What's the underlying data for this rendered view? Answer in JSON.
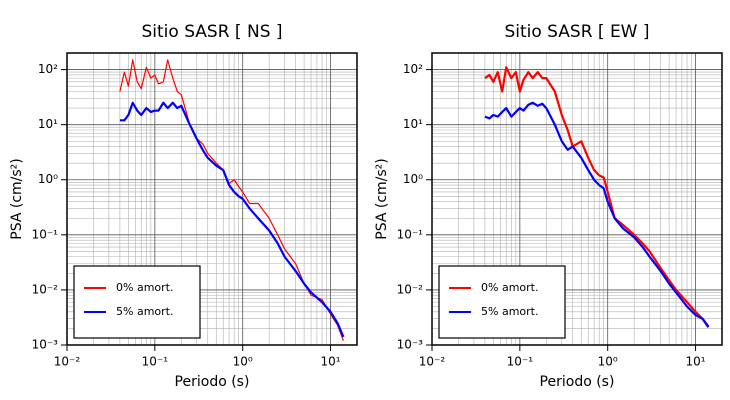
{
  "chart_data": [
    {
      "type": "line",
      "title": "Sitio SASR [ NS ]",
      "xlabel": "Periodo (s)",
      "ylabel": "PSA (cm/s²)",
      "log_x": true,
      "log_y": true,
      "grid": true,
      "legend": "lower left",
      "xlim": [
        0.01,
        20
      ],
      "ylim": [
        0.001,
        200
      ],
      "xticks": [
        {
          "value": 0.01,
          "label": "10⁻²"
        },
        {
          "value": 0.1,
          "label": "10⁻¹"
        },
        {
          "value": 1,
          "label": "10⁰"
        },
        {
          "value": 10,
          "label": "10¹"
        }
      ],
      "yticks": [
        {
          "value": 0.001,
          "label": "10⁻³"
        },
        {
          "value": 0.01,
          "label": "10⁻²"
        },
        {
          "value": 0.1,
          "label": "10⁻¹"
        },
        {
          "value": 1,
          "label": "10⁰"
        },
        {
          "value": 10,
          "label": "10¹"
        },
        {
          "value": 100,
          "label": "10²"
        }
      ],
      "x": [
        0.04,
        0.045,
        0.05,
        0.056,
        0.063,
        0.07,
        0.08,
        0.09,
        0.1,
        0.11,
        0.125,
        0.14,
        0.16,
        0.18,
        0.2,
        0.25,
        0.3,
        0.35,
        0.4,
        0.5,
        0.6,
        0.7,
        0.8,
        0.9,
        1.0,
        1.2,
        1.5,
        2,
        2.5,
        3,
        4,
        5,
        6,
        8,
        10,
        12,
        14
      ],
      "series": [
        {
          "name": "0% amort.",
          "color": "#ff0000",
          "width": 1.2,
          "values": [
            40,
            90,
            50,
            150,
            60,
            45,
            110,
            70,
            80,
            55,
            60,
            150,
            70,
            40,
            35,
            10,
            5.6,
            4.5,
            3,
            2,
            1.5,
            0.85,
            1.0,
            0.75,
            0.6,
            0.37,
            0.37,
            0.2,
            0.1,
            0.055,
            0.03,
            0.013,
            0.008,
            0.0067,
            0.0036,
            0.0023,
            0.0012
          ]
        },
        {
          "name": "5% amort.",
          "color": "#0000ff",
          "width": 2.2,
          "values": [
            12,
            12,
            15,
            25,
            18,
            15,
            20,
            17,
            18,
            18,
            25,
            20,
            25,
            20,
            22,
            10,
            5.5,
            3.5,
            2.5,
            1.8,
            1.5,
            0.8,
            0.6,
            0.5,
            0.45,
            0.3,
            0.2,
            0.12,
            0.07,
            0.04,
            0.022,
            0.013,
            0.009,
            0.006,
            0.004,
            0.0025,
            0.0014
          ]
        }
      ]
    },
    {
      "type": "line",
      "title": "Sitio SASR [ EW ]",
      "xlabel": "Periodo (s)",
      "ylabel": "PSA (cm/s²)",
      "log_x": true,
      "log_y": true,
      "grid": true,
      "legend": "lower left",
      "xlim": [
        0.01,
        20
      ],
      "ylim": [
        0.001,
        200
      ],
      "xticks": [
        {
          "value": 0.01,
          "label": "10⁻²"
        },
        {
          "value": 0.1,
          "label": "10⁻¹"
        },
        {
          "value": 1,
          "label": "10⁰"
        },
        {
          "value": 10,
          "label": "10¹"
        }
      ],
      "yticks": [
        {
          "value": 0.001,
          "label": "10⁻³"
        },
        {
          "value": 0.01,
          "label": "10⁻²"
        },
        {
          "value": 0.1,
          "label": "10⁻¹"
        },
        {
          "value": 1,
          "label": "10⁰"
        },
        {
          "value": 10,
          "label": "10¹"
        },
        {
          "value": 100,
          "label": "10²"
        }
      ],
      "x": [
        0.04,
        0.045,
        0.05,
        0.056,
        0.063,
        0.07,
        0.08,
        0.09,
        0.1,
        0.11,
        0.125,
        0.14,
        0.16,
        0.18,
        0.2,
        0.25,
        0.3,
        0.35,
        0.4,
        0.5,
        0.6,
        0.7,
        0.8,
        0.9,
        1.0,
        1.2,
        1.5,
        2,
        2.5,
        3,
        4,
        5,
        6,
        8,
        10,
        12,
        14
      ],
      "series": [
        {
          "name": "0% amort.",
          "color": "#ff0000",
          "width": 2.2,
          "values": [
            70,
            80,
            60,
            90,
            40,
            110,
            70,
            90,
            40,
            65,
            90,
            70,
            90,
            70,
            70,
            40,
            15,
            8,
            4,
            5,
            2.5,
            1.5,
            1.2,
            1.1,
            0.6,
            0.2,
            0.15,
            0.1,
            0.07,
            0.05,
            0.025,
            0.015,
            0.01,
            0.006,
            0.004,
            0.003,
            0.0022
          ]
        },
        {
          "name": "5% amort.",
          "color": "#0000ff",
          "width": 2.2,
          "values": [
            14,
            13,
            15,
            14,
            17,
            20,
            14,
            17,
            20,
            18,
            23,
            25,
            22,
            24,
            20,
            10,
            5,
            3.5,
            4,
            2.5,
            1.5,
            1.0,
            0.8,
            0.7,
            0.4,
            0.2,
            0.13,
            0.09,
            0.06,
            0.04,
            0.022,
            0.013,
            0.009,
            0.005,
            0.0035,
            0.003,
            0.0021
          ]
        }
      ]
    }
  ]
}
